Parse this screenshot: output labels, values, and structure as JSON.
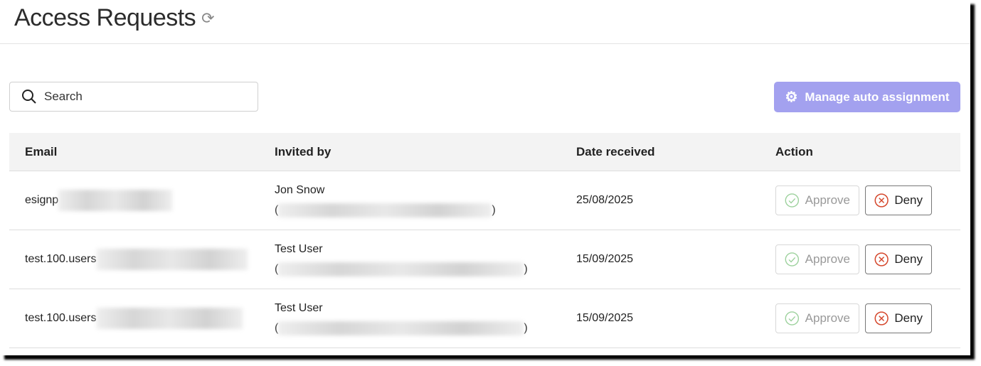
{
  "header": {
    "title": "Access Requests",
    "refresh_icon": "refresh-icon"
  },
  "search": {
    "placeholder": "Search"
  },
  "toolbar": {
    "manage_label": "Manage auto assignment",
    "accent": "#a3a1ef"
  },
  "table": {
    "columns": [
      "Email",
      "Invited by",
      "Date received",
      "Action"
    ],
    "rows": [
      {
        "email": "esignp",
        "inviter": "Jon Snow",
        "inviter_open": "(",
        "inviter_close": ")",
        "date": "25/08/2025"
      },
      {
        "email": "test.100.users",
        "inviter": "Test User",
        "inviter_open": "(",
        "inviter_close": ")",
        "date": "15/09/2025"
      },
      {
        "email": "test.100.users",
        "inviter": "Test User",
        "inviter_open": "(",
        "inviter_close": ")",
        "date": "15/09/2025"
      }
    ],
    "approve_label": "Approve",
    "deny_label": "Deny"
  }
}
